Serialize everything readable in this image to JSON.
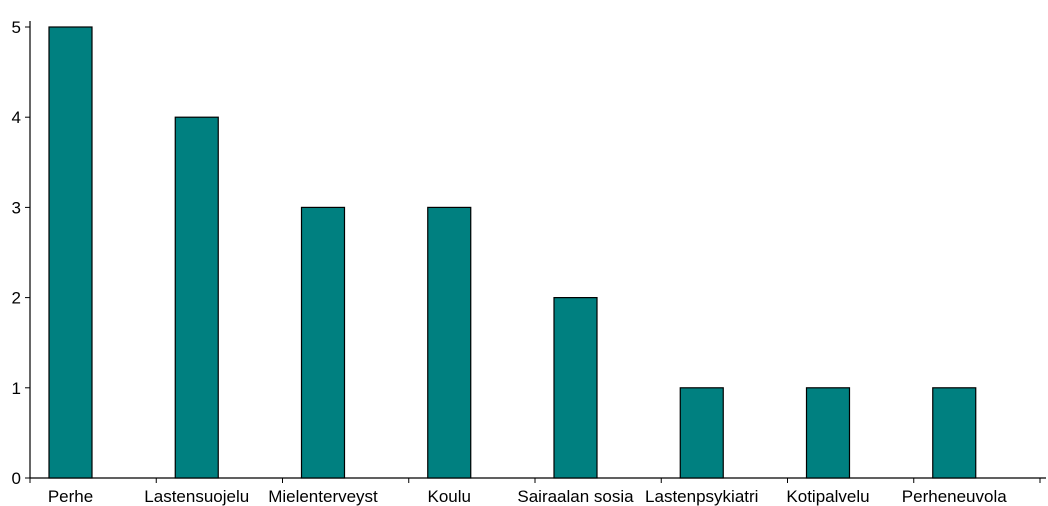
{
  "chart_data": {
    "type": "bar",
    "categories": [
      "Perhe",
      "Lastensuojelu",
      "Mielenterveyst",
      "Koulu",
      "Sairaalan sosia",
      "Lastenpsykiatri",
      "Kotipalvelu",
      "Perheneuvola"
    ],
    "values": [
      5,
      4,
      3,
      3,
      2,
      1,
      1,
      1
    ],
    "title": "",
    "xlabel": "",
    "ylabel": "",
    "ylim": [
      0,
      5
    ],
    "yticks": [
      "0",
      "1",
      "2",
      "3",
      "4",
      "5"
    ],
    "grid": false,
    "legend": "none",
    "colors": {
      "bar": "#008080",
      "axis": "#000000"
    }
  }
}
